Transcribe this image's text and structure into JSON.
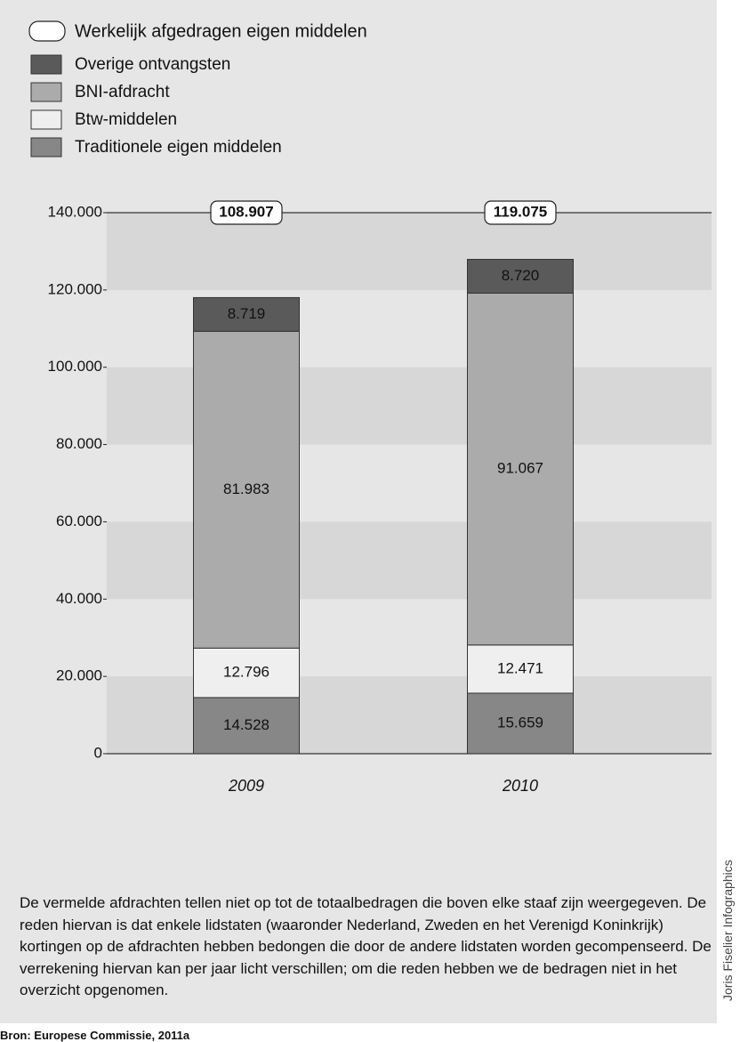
{
  "chart_data": {
    "type": "stacked-bar",
    "categories": [
      "2009",
      "2010"
    ],
    "series": [
      {
        "name": "Traditionele eigen middelen",
        "color": "#878787",
        "values": [
          14528,
          15659
        ],
        "value_labels": [
          "14.528",
          "15.659"
        ]
      },
      {
        "name": "Btw-middelen",
        "color": "#efefef",
        "values": [
          12796,
          12471
        ],
        "value_labels": [
          "12.796",
          "12.471"
        ]
      },
      {
        "name": "BNI-afdracht",
        "color": "#ababab",
        "values": [
          81983,
          91067
        ],
        "value_labels": [
          "81.983",
          "91.067"
        ]
      },
      {
        "name": "Overige ontvangsten",
        "color": "#5a5a5a",
        "values": [
          8719,
          8720
        ],
        "value_labels": [
          "8.719",
          "8.720"
        ]
      }
    ],
    "totals": {
      "name": "Werkelijk afgedragen eigen middelen",
      "values": [
        108907,
        119075
      ],
      "value_labels": [
        "108.907",
        "119.075"
      ]
    },
    "ylim": [
      0,
      140000
    ],
    "yticks": [
      0,
      {
        "value": 20000,
        "label": "20.000"
      },
      {
        "value": 40000,
        "label": "40.000"
      },
      {
        "value": 60000,
        "label": "60.000"
      },
      {
        "value": 80000,
        "label": "80.000"
      },
      {
        "value": 100000,
        "label": "100.000"
      },
      {
        "value": 120000,
        "label": "120.000"
      },
      {
        "value": 140000,
        "label": "140.000"
      }
    ],
    "grid": true,
    "note": "De vermelde afdrachten tellen niet op tot de totaalbedragen die boven elke staaf zijn weergegeven. De reden hiervan is dat enkele lidstaten (waaronder Nederland, Zweden en het Verenigd Koninkrijk) kortingen op de afdrachten hebben bedongen die door de andere lidstaten worden gecompenseerd. De verrekening hiervan kan per jaar licht verschillen; om die reden hebben we de bedragen niet in het overzicht opgenomen.",
    "source": "Bron: Europese Commissie, 2011a",
    "credit": "Joris Fiselier Infographics"
  }
}
